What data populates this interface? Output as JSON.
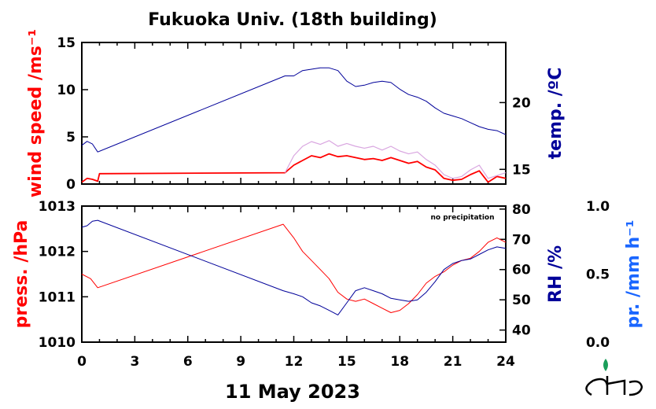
{
  "colors": {
    "red": "#ff0000",
    "blue": "#000099",
    "gust": "#d9a6e0",
    "light_blue": "#1a66ff",
    "logo_green": "#1a9e5a"
  },
  "chart_data": [
    {
      "type": "line",
      "title": "Fukuoka Univ. (18th building)",
      "xlabel": "11 May 2023",
      "x_ticks": [
        "0",
        "3",
        "6",
        "9",
        "12",
        "15",
        "18",
        "21",
        "24"
      ],
      "xlim": [
        0,
        24
      ],
      "y_left": {
        "label": "wind speed /ms⁻¹",
        "lim": [
          0,
          15
        ],
        "ticks": [
          "0",
          "5",
          "10",
          "15"
        ]
      },
      "y_right": {
        "label": "temp. /ºC",
        "lim": [
          13.9,
          24.5
        ],
        "ticks": [
          "15",
          "20"
        ]
      },
      "series": [
        {
          "axis": "right",
          "color": "blue",
          "points": [
            [
              0,
              16.8
            ],
            [
              0.3,
              17.1
            ],
            [
              0.6,
              16.9
            ],
            [
              0.9,
              16.3
            ],
            [
              11.5,
              22.0
            ],
            [
              12,
              22.0
            ],
            [
              12.5,
              22.4
            ],
            [
              13,
              22.5
            ],
            [
              13.5,
              22.6
            ],
            [
              14,
              22.6
            ],
            [
              14.5,
              22.4
            ],
            [
              15,
              21.6
            ],
            [
              15.5,
              21.2
            ],
            [
              16,
              21.3
            ],
            [
              16.5,
              21.5
            ],
            [
              17,
              21.6
            ],
            [
              17.5,
              21.5
            ],
            [
              18,
              21.0
            ],
            [
              18.5,
              20.6
            ],
            [
              19,
              20.4
            ],
            [
              19.5,
              20.1
            ],
            [
              20,
              19.6
            ],
            [
              20.5,
              19.2
            ],
            [
              21,
              19.0
            ],
            [
              21.5,
              18.8
            ],
            [
              22,
              18.5
            ],
            [
              22.5,
              18.2
            ],
            [
              23,
              18.0
            ],
            [
              23.5,
              17.9
            ],
            [
              24,
              17.6
            ]
          ]
        },
        {
          "axis": "left",
          "color": "red",
          "points": [
            [
              0,
              0.2
            ],
            [
              0.3,
              0.6
            ],
            [
              0.6,
              0.5
            ],
            [
              0.9,
              0.3
            ],
            [
              1.0,
              1.1
            ],
            [
              11.5,
              1.2
            ],
            [
              12,
              2.0
            ],
            [
              12.5,
              2.5
            ],
            [
              13,
              3.0
            ],
            [
              13.5,
              2.8
            ],
            [
              14,
              3.2
            ],
            [
              14.5,
              2.9
            ],
            [
              15,
              3.0
            ],
            [
              15.5,
              2.8
            ],
            [
              16,
              2.6
            ],
            [
              16.5,
              2.7
            ],
            [
              17,
              2.5
            ],
            [
              17.5,
              2.8
            ],
            [
              18,
              2.5
            ],
            [
              18.5,
              2.2
            ],
            [
              19,
              2.4
            ],
            [
              19.5,
              1.8
            ],
            [
              20,
              1.5
            ],
            [
              20.5,
              0.6
            ],
            [
              21,
              0.4
            ],
            [
              21.5,
              0.5
            ],
            [
              22,
              1.0
            ],
            [
              22.5,
              1.4
            ],
            [
              23,
              0.2
            ],
            [
              23.5,
              0.8
            ],
            [
              24,
              0.6
            ]
          ]
        },
        {
          "axis": "left",
          "color": "gust",
          "points": [
            [
              11.5,
              1.2
            ],
            [
              12,
              3.0
            ],
            [
              12.5,
              4.0
            ],
            [
              13,
              4.5
            ],
            [
              13.5,
              4.2
            ],
            [
              14,
              4.6
            ],
            [
              14.5,
              4.0
            ],
            [
              15,
              4.3
            ],
            [
              15.5,
              4.0
            ],
            [
              16,
              3.8
            ],
            [
              16.5,
              4.0
            ],
            [
              17,
              3.6
            ],
            [
              17.5,
              4.0
            ],
            [
              18,
              3.5
            ],
            [
              18.5,
              3.2
            ],
            [
              19,
              3.4
            ],
            [
              19.5,
              2.6
            ],
            [
              20,
              2.0
            ],
            [
              20.5,
              1.0
            ],
            [
              21,
              0.6
            ],
            [
              21.5,
              0.8
            ],
            [
              22,
              1.5
            ],
            [
              22.5,
              2.0
            ],
            [
              23,
              0.6
            ],
            [
              24,
              1.2
            ]
          ]
        }
      ]
    },
    {
      "type": "line",
      "annotation": "no precipitation",
      "x_ticks": [
        "0",
        "3",
        "6",
        "9",
        "12",
        "15",
        "18",
        "21",
        "24"
      ],
      "xlim": [
        0,
        24
      ],
      "y_left": {
        "label": "press. /hPa",
        "lim": [
          1010,
          1013
        ],
        "ticks": [
          "1010",
          "1011",
          "1012",
          "1013"
        ]
      },
      "y_right": {
        "label": "RH /%",
        "lim": [
          36,
          81
        ],
        "ticks": [
          "40",
          "50",
          "60",
          "70",
          "80"
        ]
      },
      "y_far_right": {
        "label": "pr. /mm h⁻¹",
        "lim": [
          0,
          1
        ],
        "ticks": [
          "0.0",
          "0.5",
          "1.0"
        ]
      },
      "series": [
        {
          "axis": "left",
          "color": "red",
          "points": [
            [
              0,
              1011.5
            ],
            [
              0.5,
              1011.4
            ],
            [
              0.9,
              1011.2
            ],
            [
              11.4,
              1012.6
            ],
            [
              12,
              1012.3
            ],
            [
              12.5,
              1012.0
            ],
            [
              13,
              1011.8
            ],
            [
              13.5,
              1011.6
            ],
            [
              14,
              1011.4
            ],
            [
              14.5,
              1011.1
            ],
            [
              15,
              1010.95
            ],
            [
              15.5,
              1010.9
            ],
            [
              16,
              1010.95
            ],
            [
              16.5,
              1010.85
            ],
            [
              17,
              1010.75
            ],
            [
              17.5,
              1010.65
            ],
            [
              18,
              1010.7
            ],
            [
              18.5,
              1010.85
            ],
            [
              19,
              1011.05
            ],
            [
              19.5,
              1011.3
            ],
            [
              20,
              1011.45
            ],
            [
              20.5,
              1011.55
            ],
            [
              21,
              1011.7
            ],
            [
              21.5,
              1011.8
            ],
            [
              22,
              1011.85
            ],
            [
              22.5,
              1012.0
            ],
            [
              23,
              1012.2
            ],
            [
              23.5,
              1012.3
            ],
            [
              24,
              1012.2
            ]
          ]
        },
        {
          "axis": "right",
          "color": "blue",
          "points": [
            [
              0,
              74
            ],
            [
              0.3,
              74.5
            ],
            [
              0.6,
              76
            ],
            [
              0.9,
              76.3
            ],
            [
              11.4,
              53
            ],
            [
              12,
              52
            ],
            [
              12.5,
              51
            ],
            [
              13,
              49
            ],
            [
              13.5,
              48
            ],
            [
              14,
              46.5
            ],
            [
              14.5,
              45
            ],
            [
              15,
              49
            ],
            [
              15.5,
              53
            ],
            [
              16,
              54
            ],
            [
              16.5,
              53
            ],
            [
              17,
              52
            ],
            [
              17.5,
              50.5
            ],
            [
              18,
              50
            ],
            [
              18.5,
              49.5
            ],
            [
              19,
              50
            ],
            [
              19.5,
              52.5
            ],
            [
              20,
              56
            ],
            [
              20.5,
              60
            ],
            [
              21,
              62
            ],
            [
              21.5,
              63
            ],
            [
              22,
              63.5
            ],
            [
              22.5,
              65
            ],
            [
              23,
              66.5
            ],
            [
              23.5,
              67.5
            ],
            [
              24,
              67
            ]
          ]
        }
      ]
    }
  ]
}
